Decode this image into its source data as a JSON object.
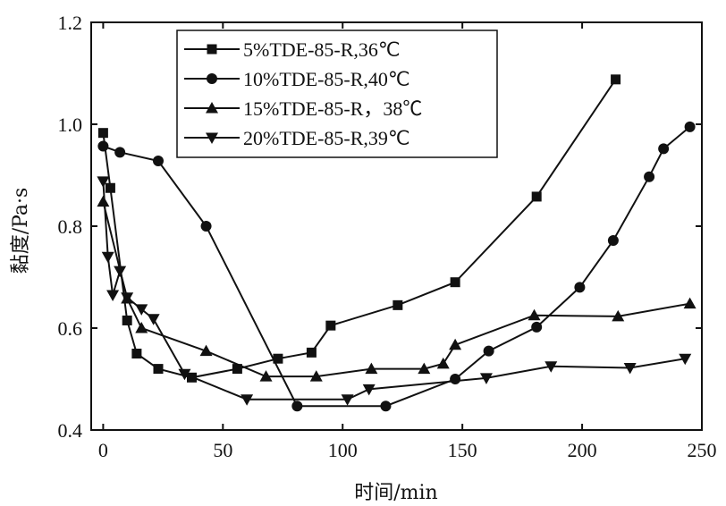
{
  "chart_data": {
    "type": "line",
    "xlabel": "时间/min",
    "ylabel": "黏度/Pa·s",
    "xlim": [
      -5,
      250
    ],
    "ylim": [
      0.4,
      1.2
    ],
    "xticks": [
      0,
      50,
      100,
      150,
      200,
      250
    ],
    "yticks": [
      0.4,
      0.6,
      0.8,
      1.0,
      1.2
    ],
    "xtick_labels": [
      "0",
      "50",
      "100",
      "150",
      "200",
      "250"
    ],
    "ytick_labels": [
      "0.4",
      "0.6",
      "0.8",
      "1.0",
      "1.2"
    ],
    "grid": false,
    "legend_position": "top-left",
    "series": [
      {
        "name": "5%TDE-85-R,36℃",
        "marker": "square",
        "x": [
          0,
          3,
          10,
          14,
          23,
          37,
          56,
          73,
          87,
          95,
          123,
          147,
          181,
          214
        ],
        "y": [
          0.983,
          0.875,
          0.615,
          0.55,
          0.52,
          0.503,
          0.52,
          0.54,
          0.552,
          0.605,
          0.645,
          0.69,
          0.858,
          1.088
        ]
      },
      {
        "name": "10%TDE-85-R,40℃",
        "marker": "circle",
        "x": [
          0,
          7,
          23,
          43,
          81,
          118,
          147,
          161,
          181,
          199,
          213,
          228,
          234,
          245
        ],
        "y": [
          0.957,
          0.945,
          0.928,
          0.8,
          0.447,
          0.447,
          0.5,
          0.555,
          0.602,
          0.68,
          0.772,
          0.897,
          0.952,
          0.995
        ]
      },
      {
        "name": "15%TDE-85-R，38℃",
        "marker": "triangle-up",
        "x": [
          0,
          10,
          16,
          43,
          68,
          89,
          112,
          134,
          142,
          147,
          180,
          215,
          245
        ],
        "y": [
          0.848,
          0.658,
          0.6,
          0.555,
          0.505,
          0.505,
          0.52,
          0.52,
          0.53,
          0.567,
          0.625,
          0.623,
          0.648
        ]
      },
      {
        "name": "20%TDE-85-R,39℃",
        "marker": "triangle-down",
        "x": [
          0,
          2,
          4,
          7,
          10,
          16,
          21,
          34,
          60,
          102,
          111,
          160,
          187,
          220,
          243
        ],
        "y": [
          0.888,
          0.74,
          0.665,
          0.712,
          0.66,
          0.637,
          0.618,
          0.51,
          0.46,
          0.46,
          0.48,
          0.502,
          0.525,
          0.522,
          0.54
        ]
      }
    ]
  }
}
